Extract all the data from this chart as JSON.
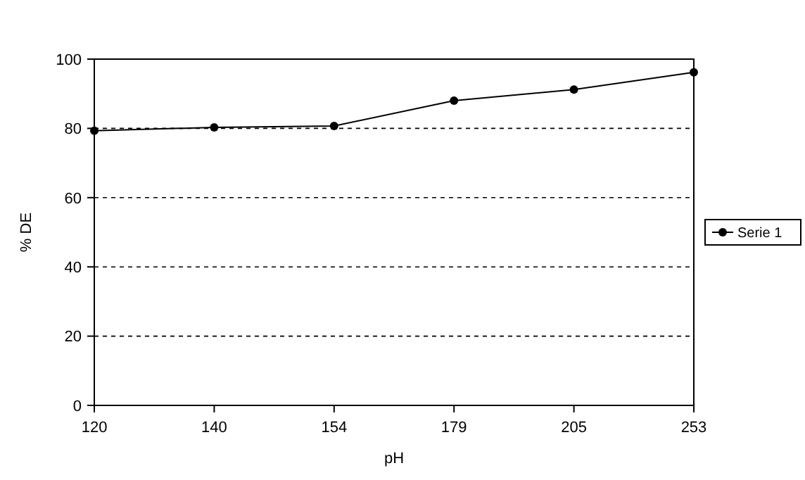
{
  "chart_data": {
    "type": "line",
    "xlabel": "pH",
    "ylabel": "% DE",
    "categories": [
      "120",
      "140",
      "154",
      "179",
      "205",
      "253"
    ],
    "series": [
      {
        "name": "Serie 1",
        "color": "#000000",
        "values": [
          79.3,
          80.3,
          80.7,
          88,
          91.2,
          96.2
        ]
      }
    ],
    "ylim": [
      0,
      100
    ],
    "yticks": [
      0,
      20,
      40,
      60,
      80,
      100
    ],
    "grid": "y",
    "legend": "right",
    "marker": "circle",
    "line_style": "solid"
  }
}
